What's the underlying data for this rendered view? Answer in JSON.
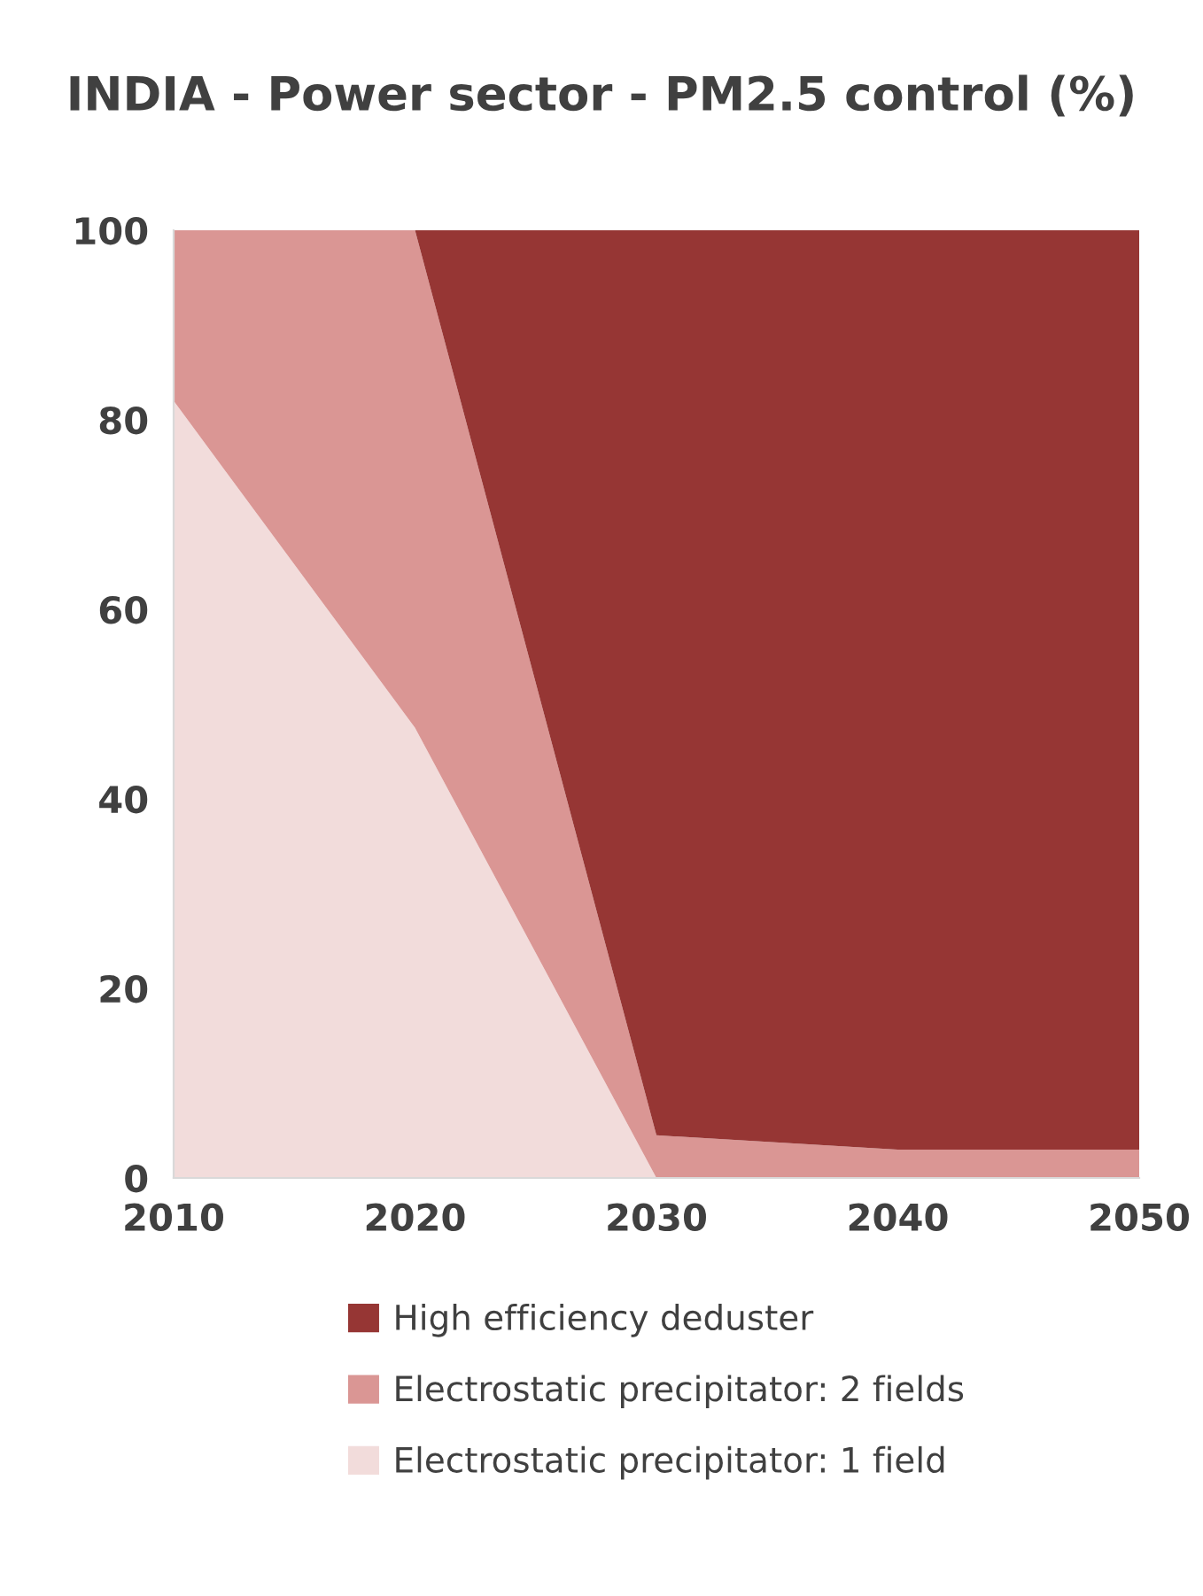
{
  "chart_data": {
    "type": "area",
    "title": "INDIA - Power sector - PM2.5 control (%)",
    "stacked": true,
    "x": [
      2010,
      2020,
      2030,
      2040,
      2050
    ],
    "series": [
      {
        "name": "Electrostatic precipitator: 1 field",
        "color": "#f2dcdb",
        "values": [
          82,
          47.5,
          0,
          0,
          0
        ]
      },
      {
        "name": "Electrostatic precipitator: 2 fields",
        "color": "#da9694",
        "values": [
          18,
          52.5,
          4.5,
          3,
          3
        ]
      },
      {
        "name": "High efficiency deduster",
        "color": "#963634",
        "values": [
          0,
          0,
          95.5,
          97,
          97
        ]
      }
    ],
    "xlim": [
      2010,
      2050
    ],
    "xticks": [
      2010,
      2020,
      2030,
      2040,
      2050
    ],
    "ylim": [
      0,
      100
    ],
    "yticks": [
      0,
      20,
      40,
      60,
      80,
      100
    ],
    "grid": false,
    "legend": "bottom"
  }
}
